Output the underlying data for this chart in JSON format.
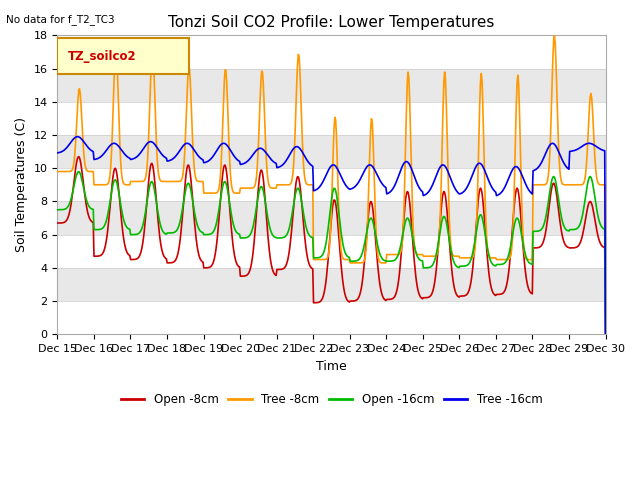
{
  "title": "Tonzi Soil CO2 Profile: Lower Temperatures",
  "subtitle": "No data for f_T2_TC3",
  "xlabel": "Time",
  "ylabel": "Soil Temperatures (C)",
  "legend_label": "TZ_soilco2",
  "ylim": [
    0,
    18
  ],
  "xlim": [
    15,
    30
  ],
  "xtick_labels": [
    "Dec 15",
    "Dec 16",
    "Dec 17",
    "Dec 18",
    "Dec 19",
    "Dec 20",
    "Dec 21",
    "Dec 22",
    "Dec 23",
    "Dec 24",
    "Dec 25",
    "Dec 26",
    "Dec 27",
    "Dec 28",
    "Dec 29",
    "Dec 30"
  ],
  "xtick_positions": [
    15,
    16,
    17,
    18,
    19,
    20,
    21,
    22,
    23,
    24,
    25,
    26,
    27,
    28,
    29,
    30
  ],
  "colors": {
    "open_8cm": "#cc0000",
    "tree_8cm": "#ff9900",
    "open_16cm": "#00bb00",
    "tree_16cm": "#0000ee"
  },
  "legend_items": [
    "Open -8cm",
    "Tree -8cm",
    "Open -16cm",
    "Tree -16cm"
  ],
  "title_fontsize": 11,
  "axis_fontsize": 9,
  "tick_fontsize": 8
}
